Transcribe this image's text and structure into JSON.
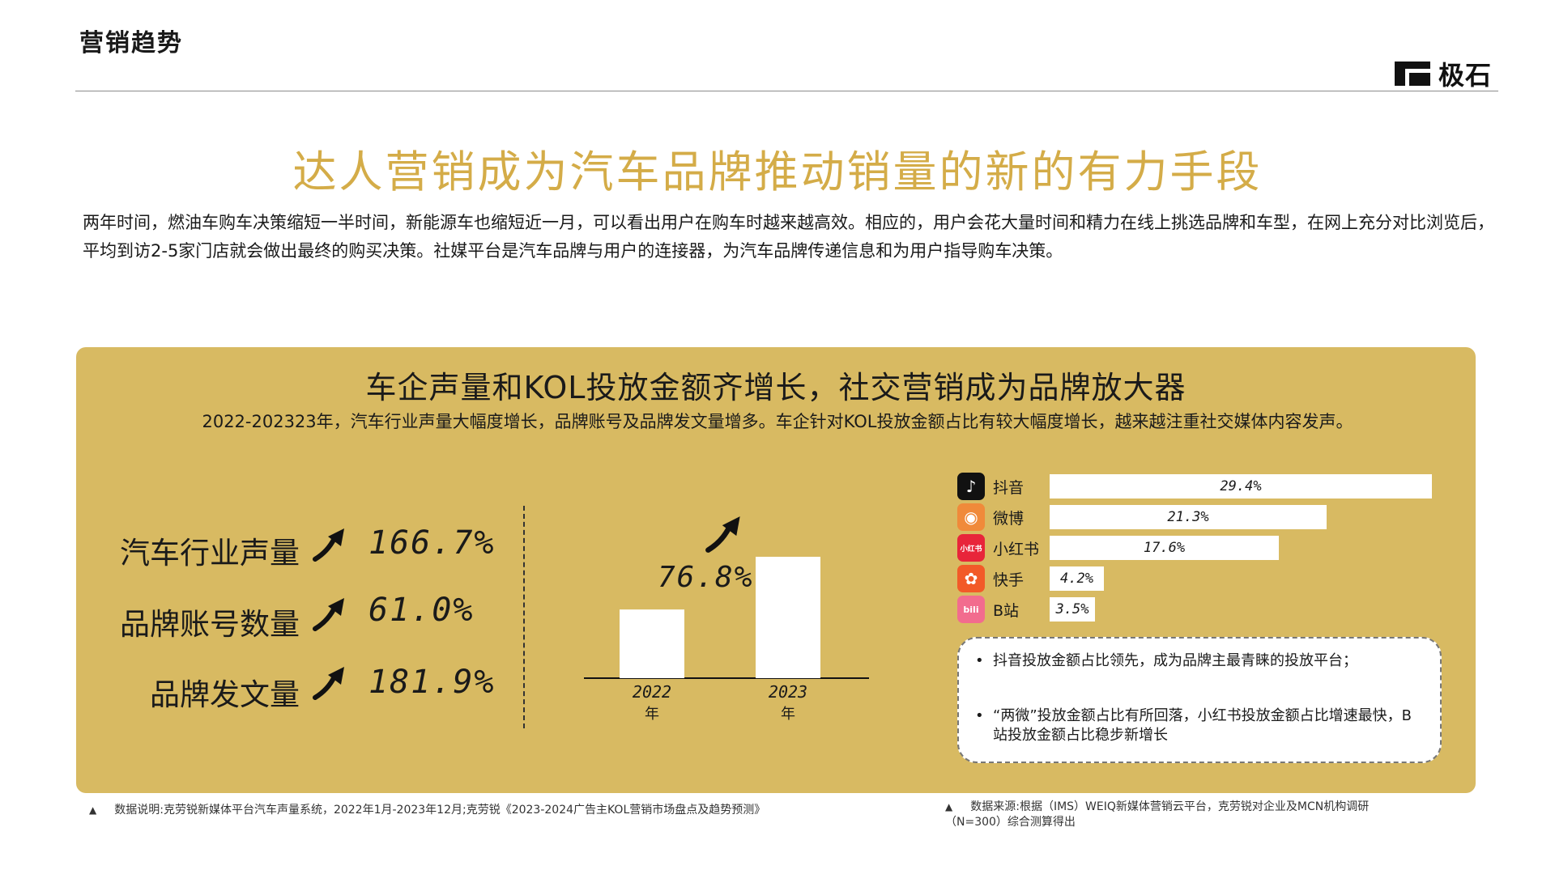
{
  "header": {
    "section_title": "营销趋势",
    "logo_text": "极石"
  },
  "main_title": "达人营销成为汽车品牌推动销量的新的有力手段",
  "intro": "两年时间，燃油车购车决策缩短一半时间，新能源车也缩短近一月，可以看出用户在购车时越来越高效。相应的，用户会花大量时间和精力在线上挑选品牌和车型，在网上充分对比浏览后，平均到访2-5家门店就会做出最终的购买决策。社媒平台是汽车品牌与用户的连接器，为汽车品牌传递信息和为用户指导购车决策。",
  "panel": {
    "title": "车企声量和KOL投放金额齐增长，社交营销成为品牌放大器",
    "subtitle": "2022-202323年，汽车行业声量大幅度增长，品牌账号及品牌发文量增多。车企针对KOL投放金额占比有较大幅度增长，越来越注重社交媒体内容发声。",
    "metrics": [
      {
        "label": "汽车行业声量",
        "value": "166.7%"
      },
      {
        "label": "品牌账号数量",
        "value": "61.0%"
      },
      {
        "label": "品牌发文量",
        "value": "181.9%"
      }
    ],
    "notes": [
      "抖音投放金额占比领先，成为品牌主最青睐的投放平台；",
      "“两微”投放金额占比有所回落，小红书投放金额占比增速最快，B站投放金额占比稳步新增长"
    ]
  },
  "chart_data": [
    {
      "type": "bar",
      "categories": [
        "2022\n年",
        "2023\n年"
      ],
      "category_labels": [
        "2022",
        "2023"
      ],
      "category_suffix": "年",
      "values": [
        1.0,
        1.768
      ],
      "annotation": "76.8%",
      "title": "",
      "xlabel": "",
      "ylabel": ""
    },
    {
      "type": "bar",
      "orientation": "horizontal",
      "categories": [
        "抖音",
        "微博",
        "小红书",
        "快手",
        "B站"
      ],
      "values": [
        29.4,
        21.3,
        17.6,
        4.2,
        3.5
      ],
      "value_labels": [
        "29.4%",
        "21.3%",
        "17.6%",
        "4.2%",
        "3.5%"
      ],
      "icons": [
        "douyin-icon",
        "weibo-icon",
        "xiaohongshu-icon",
        "kuaishou-icon",
        "bilibili-icon"
      ],
      "icon_colors": [
        "#111111",
        "#f08a3a",
        "#e8253a",
        "#f25a28",
        "#f26c8e"
      ],
      "xlim": [
        0,
        29.4
      ]
    }
  ],
  "footnotes": {
    "left": "数据说明:克劳锐新媒体平台汽车声量系统，2022年1月-2023年12月;克劳锐《2023-2024广告主KOL营销市场盘点及趋势预测》",
    "right_line1": "数据来源:根据（IMS）WEIQ新媒体营销云平台，克劳锐对企业及MCN机构调研",
    "right_line2": "（N=300）综合测算得出",
    "marker": "▲"
  },
  "colors": {
    "gold_title": "#d4ac48",
    "panel_bg": "#d8ba62",
    "text": "#1a1a1a"
  }
}
